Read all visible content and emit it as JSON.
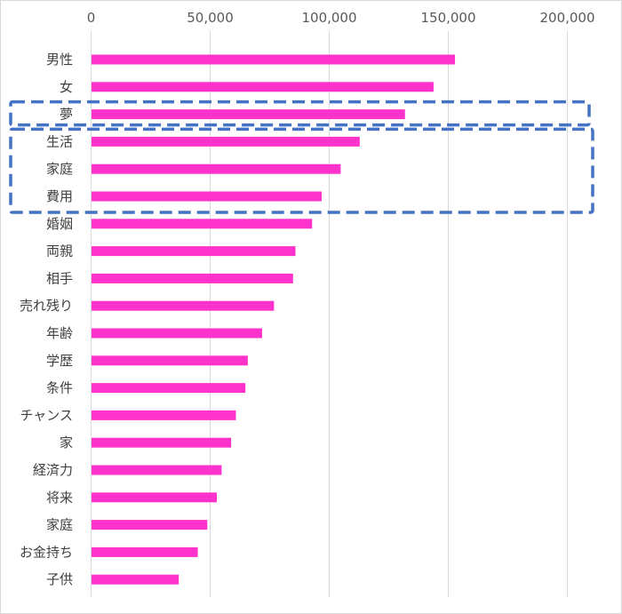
{
  "chart_data": {
    "type": "bar",
    "orientation": "horizontal",
    "title": "",
    "xlabel": "",
    "ylabel": "",
    "xlim": [
      0,
      200000
    ],
    "x_ticks": [
      0,
      50000,
      100000,
      150000,
      200000
    ],
    "x_tick_labels": [
      "0",
      "50,000",
      "100,000",
      "150,000",
      "200,000"
    ],
    "x_axis_position": "top",
    "grid": true,
    "legend": "none",
    "categories": [
      "男性",
      "女",
      "夢",
      "生活",
      "家庭",
      "費用",
      "婚姻",
      "両親",
      "相手",
      "売れ残り",
      "年齢",
      "学歴",
      "条件",
      "チャンス",
      "家",
      "経済力",
      "将来",
      "家庭",
      "お金持ち",
      "子供"
    ],
    "values": [
      153000,
      144000,
      132000,
      113000,
      105000,
      97000,
      93000,
      86000,
      85000,
      77000,
      72000,
      66000,
      65000,
      61000,
      59000,
      55000,
      53000,
      49000,
      45000,
      37000
    ],
    "bar_color": "#ff33cc",
    "highlight_groups": [
      {
        "category_indices": [
          2
        ],
        "color": "#4472c4",
        "style": "dashed"
      },
      {
        "category_indices": [
          3,
          4,
          5
        ],
        "color": "#4472c4",
        "style": "dashed"
      }
    ]
  }
}
